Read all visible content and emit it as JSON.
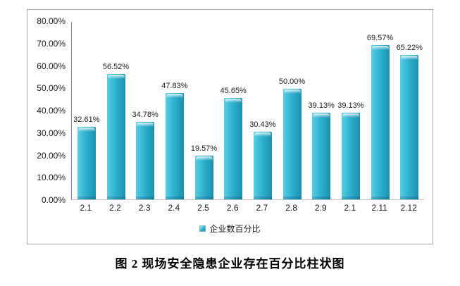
{
  "chart_data": {
    "type": "bar",
    "title": "",
    "categories": [
      "2.1",
      "2.2",
      "2.3",
      "2.4",
      "2.5",
      "2.6",
      "2.7",
      "2.8",
      "2.9",
      "2.1",
      "2.11",
      "2.12"
    ],
    "values": [
      32.61,
      56.52,
      34.78,
      47.83,
      19.57,
      45.65,
      30.43,
      50.0,
      39.13,
      39.13,
      69.57,
      65.22
    ],
    "value_labels": [
      "32.61%",
      "56.52%",
      "34.78%",
      "47.83%",
      "19.57%",
      "45.65%",
      "30.43%",
      "50.00%",
      "39.13%",
      "39.13%",
      "69.57%",
      "65.22%"
    ],
    "y_ticks": [
      "80.00%",
      "70.00%",
      "60.00%",
      "50.00%",
      "40.00%",
      "30.00%",
      "20.00%",
      "10.00%",
      "0.00%"
    ],
    "ylim": [
      0,
      80
    ],
    "grid": false,
    "legend": {
      "label": "企业数百分比",
      "position": "bottom"
    }
  },
  "caption": "图 2 现场安全隐患企业存在百分比柱状图",
  "colors": {
    "bar_light": "#5BCDE3",
    "bar_main": "#2EB2D1",
    "bar_dark": "#1B90AD",
    "axis_line": "#808080",
    "baseline": "#C0C0C0",
    "frame_border": "#A6A6A6",
    "text": "#1A1A1A"
  }
}
